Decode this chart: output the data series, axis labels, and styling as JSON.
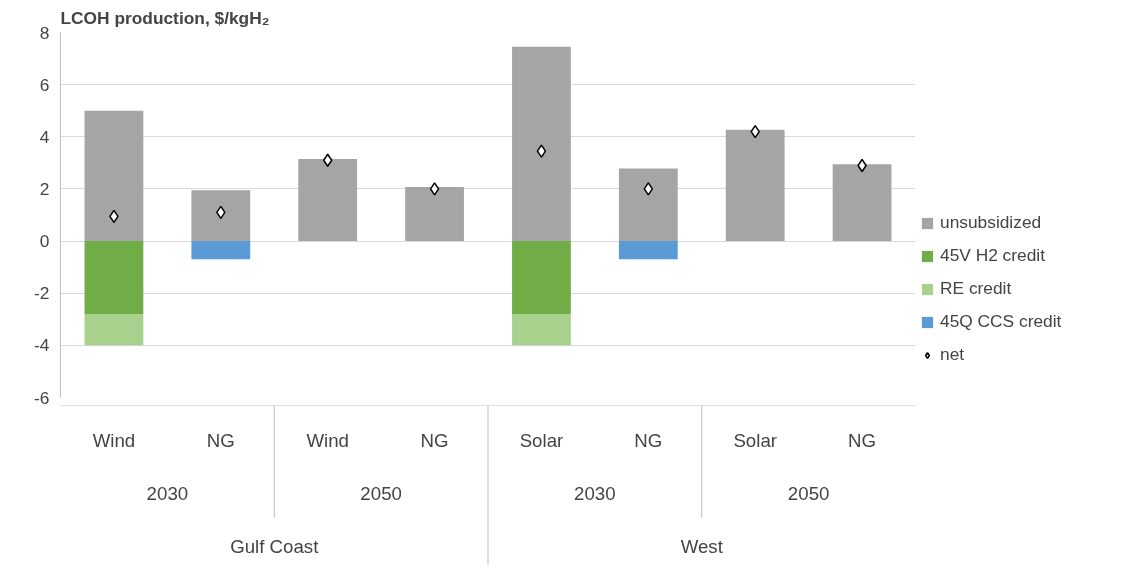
{
  "chart_data": {
    "type": "bar",
    "title": "LCOH production, $/kgH₂",
    "stacked": true,
    "categories": [
      "Wind",
      "NG",
      "Wind",
      "NG",
      "Solar",
      "NG",
      "Solar",
      "NG"
    ],
    "annotations": [
      "2030",
      "2050",
      "2030",
      "2050",
      "Gulf Coast",
      "West"
    ],
    "series": [
      {
        "name": "unsubsidized",
        "color": "#a5a5a5",
        "values": [
          5.0,
          1.95,
          3.15,
          2.07,
          7.45,
          2.78,
          4.27,
          2.95
        ]
      },
      {
        "name": "45V H2 credit",
        "color": "#70ad47",
        "values": [
          -2.8,
          null,
          null,
          null,
          -2.8,
          null,
          null,
          null
        ]
      },
      {
        "name": "RE credit",
        "color": "#a9d18e",
        "values": [
          -1.2,
          null,
          null,
          null,
          -1.2,
          null,
          null,
          null
        ]
      },
      {
        "name": "45Q CCS credit",
        "color": "#5b9bd5",
        "values": [
          null,
          -0.7,
          null,
          null,
          null,
          -0.7,
          null,
          null
        ]
      },
      {
        "name": "net",
        "type": "scatter",
        "marker": "diamond",
        "color": "#000000",
        "values": [
          0.95,
          1.1,
          3.1,
          2.0,
          3.45,
          2.0,
          4.2,
          2.9
        ]
      }
    ],
    "ylim": [
      -6,
      8
    ],
    "yticks": [
      -6,
      -4,
      -2,
      0,
      2,
      4,
      6,
      8
    ],
    "grid": "y",
    "legend": "right"
  }
}
